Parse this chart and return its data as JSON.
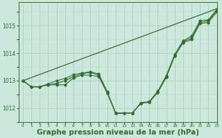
{
  "background_color": "#cce8dc",
  "grid_color": "#aaccbb",
  "line_color": "#2d6e2d",
  "xlabel": "Graphe pression niveau de la mer (hPa)",
  "xlabel_fontsize": 7.5,
  "xlim": [
    -0.5,
    23
  ],
  "ylim": [
    1011.5,
    1015.85
  ],
  "yticks": [
    1012,
    1013,
    1014,
    1015
  ],
  "xtick_labels": [
    "0",
    "1",
    "2",
    "3",
    "4",
    "5",
    "6",
    "7",
    "8",
    "9",
    "10",
    "11",
    "12",
    "13",
    "14",
    "15",
    "16",
    "17",
    "18",
    "19",
    "20",
    "21",
    "22",
    "23"
  ],
  "series1": [
    1013.0,
    1012.78,
    1012.78,
    1012.85,
    1012.85,
    1012.85,
    1013.1,
    1013.2,
    1013.2,
    1013.15,
    1012.55,
    1011.82,
    1011.82,
    1011.83,
    1012.18,
    1012.22,
    1012.58,
    1013.12,
    1013.9,
    1014.38,
    1014.5,
    1015.08,
    1015.12,
    1015.5
  ],
  "series2": [
    1013.0,
    1012.78,
    1012.78,
    1012.85,
    1012.9,
    1013.0,
    1013.15,
    1013.25,
    1013.3,
    1013.2,
    1012.58,
    1011.82,
    1011.82,
    1011.83,
    1012.18,
    1012.22,
    1012.58,
    1013.15,
    1013.9,
    1014.42,
    1014.55,
    1015.12,
    1015.18,
    1015.55
  ],
  "series3": [
    1013.0,
    1012.78,
    1012.78,
    1012.88,
    1013.0,
    1013.08,
    1013.22,
    1013.28,
    1013.32,
    1013.25,
    1012.6,
    1011.82,
    1011.82,
    1011.83,
    1012.2,
    1012.24,
    1012.62,
    1013.18,
    1013.95,
    1014.45,
    1014.62,
    1015.18,
    1015.22,
    1015.6
  ],
  "trend_x": [
    0,
    23
  ],
  "trend_y": [
    1013.0,
    1015.62
  ]
}
